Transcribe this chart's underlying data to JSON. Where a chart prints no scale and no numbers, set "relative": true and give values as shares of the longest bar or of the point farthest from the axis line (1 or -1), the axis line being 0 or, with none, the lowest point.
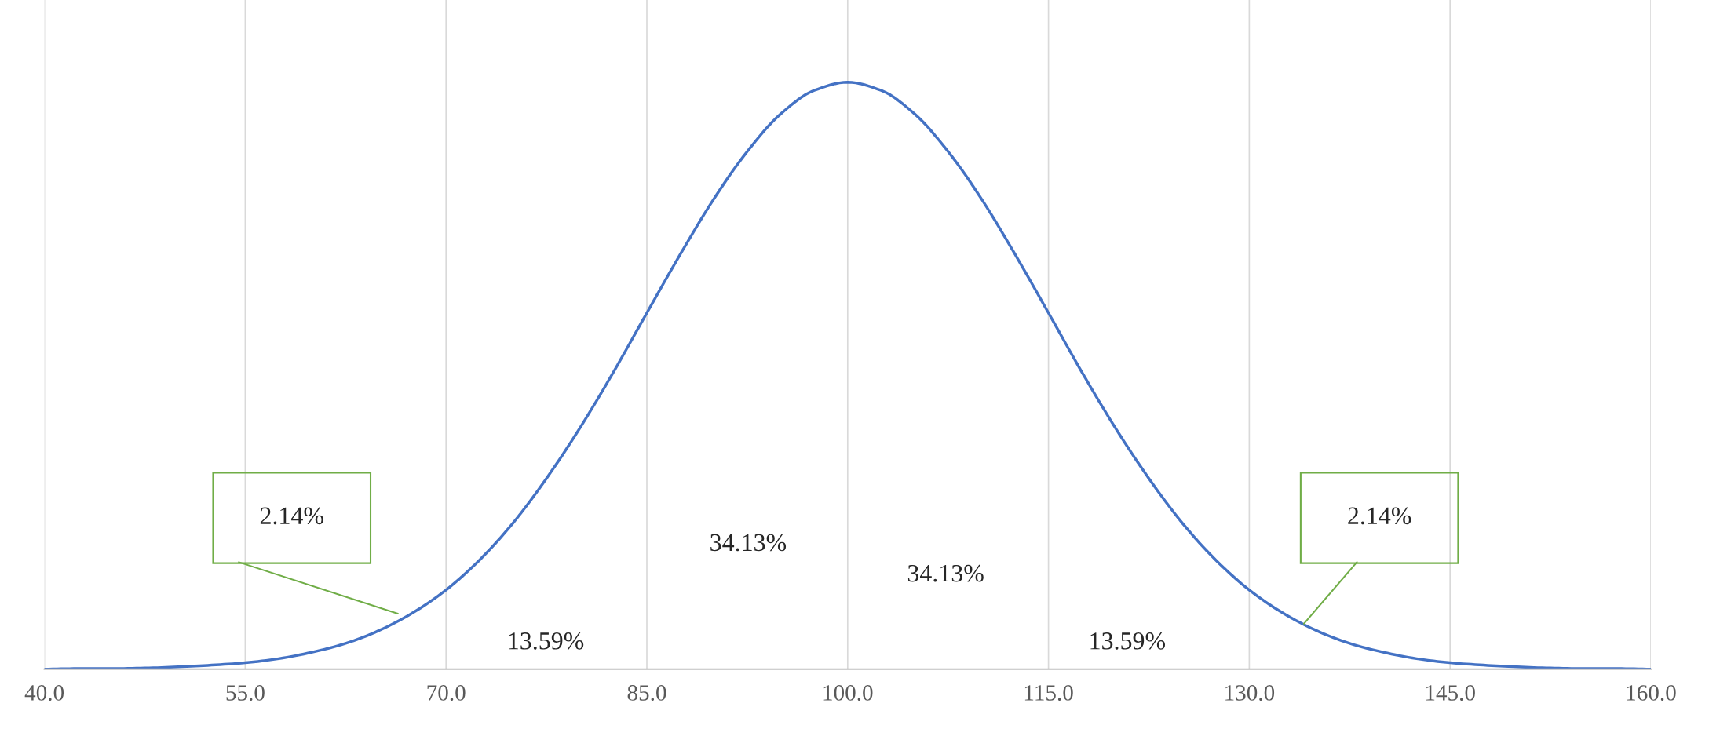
{
  "chart_data": {
    "type": "line",
    "relative": true,
    "x": [
      40,
      42.5,
      45,
      47.5,
      50,
      52.5,
      55,
      57.5,
      60,
      62.5,
      65,
      67.5,
      70,
      72.5,
      75,
      77.5,
      80,
      82.5,
      85,
      87.5,
      90,
      92.5,
      95,
      97.5,
      100,
      102.5,
      105,
      107.5,
      110,
      112.5,
      115,
      117.5,
      120,
      122.5,
      125,
      127.5,
      130,
      132.5,
      135,
      137.5,
      140,
      142.5,
      145,
      147.5,
      150,
      152.5,
      155,
      157.5,
      160
    ],
    "series": [
      {
        "color": "#4472c4",
        "values": [
          0.0,
          0.001,
          0.001,
          0.002,
          0.004,
          0.007,
          0.011,
          0.018,
          0.029,
          0.044,
          0.066,
          0.096,
          0.135,
          0.186,
          0.249,
          0.325,
          0.411,
          0.506,
          0.607,
          0.707,
          0.801,
          0.882,
          0.946,
          0.986,
          1,
          0.986,
          0.946,
          0.882,
          0.801,
          0.707,
          0.607,
          0.506,
          0.411,
          0.325,
          0.249,
          0.186,
          0.135,
          0.096,
          0.066,
          0.044,
          0.029,
          0.018,
          0.011,
          0.007,
          0.004,
          0.002,
          0.001,
          0.001,
          0.0
        ]
      }
    ],
    "xlim": [
      40,
      160
    ],
    "xticks": [
      {
        "value": 40,
        "label": "40.0"
      },
      {
        "value": 55,
        "label": "55.0"
      },
      {
        "value": 70,
        "label": "70.0"
      },
      {
        "value": 85,
        "label": "85.0"
      },
      {
        "value": 100,
        "label": "100.0"
      },
      {
        "value": 115,
        "label": "115.0"
      },
      {
        "value": 130,
        "label": "130.0"
      },
      {
        "value": 145,
        "label": "145.0"
      },
      {
        "value": 160,
        "label": "160.0"
      }
    ],
    "grid": "x",
    "legend": false,
    "marker": "none",
    "line_style": "solid",
    "annotations": [
      "2.14%",
      "34.13%",
      "34.13%",
      "13.59%",
      "13.59%",
      "2.14%"
    ]
  }
}
